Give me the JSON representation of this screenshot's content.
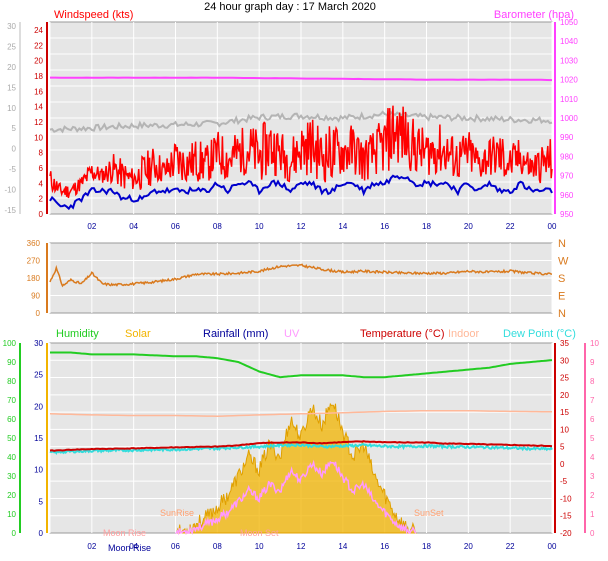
{
  "page": {
    "title": "24 hour graph day : 17 March 2020"
  },
  "colors": {
    "background": "#ffffff",
    "panel": "#e6e6e6",
    "grid": "#ffffff",
    "wind": "#ff0000",
    "wind_avg": "#0000cc",
    "gust_trace": "#b4b4b4",
    "barometer": "#ff40ff",
    "direction": "#d97a1e",
    "humidity": "#22cc22",
    "solar": "#f2b400",
    "rainfall": "#000099",
    "uv": "#ff99ff",
    "temperature": "#cc0000",
    "indoor": "#ffb899",
    "dewpoint": "#33dddd"
  },
  "chart_data": [
    {
      "type": "line",
      "title": "24 hour graph day : 17 March 2020",
      "left_axis_label": "Windspeed (kts)",
      "right_axis_label": "Barometer (hpa)",
      "x_ticks": [
        "02",
        "04",
        "06",
        "08",
        "10",
        "12",
        "14",
        "16",
        "18",
        "20",
        "22",
        "00"
      ],
      "outer_ticks": [
        "30",
        "25",
        "20",
        "15",
        "10",
        "5",
        "0",
        "-5",
        "-10",
        "-15"
      ],
      "left_ticks": [
        "24",
        "22",
        "20",
        "18",
        "16",
        "14",
        "12",
        "10",
        "8",
        "6",
        "4",
        "2",
        "0"
      ],
      "right_ticks": [
        "1050",
        "1040",
        "1030",
        "1020",
        "1010",
        "1000",
        "990",
        "980",
        "970",
        "960",
        "950"
      ],
      "xlim": [
        0,
        24
      ],
      "ylim_windspeed": [
        0,
        25
      ],
      "ylim_barometer": [
        950,
        1050
      ],
      "grid": true,
      "series": [
        {
          "name": "Windspeed (kts)",
          "role": "gust",
          "x": [
            0,
            0.5,
            1,
            1.5,
            2,
            2.5,
            3,
            3.5,
            4,
            4.5,
            5,
            5.5,
            6,
            6.5,
            7,
            7.5,
            8,
            8.5,
            9,
            9.5,
            10,
            10.5,
            11,
            11.5,
            12,
            12.5,
            13,
            13.5,
            14,
            14.5,
            15,
            15.5,
            16,
            16.5,
            17,
            17.5,
            18,
            18.5,
            19,
            19.5,
            20,
            20.5,
            21,
            21.5,
            22,
            22.5,
            23,
            23.5,
            24
          ],
          "values": [
            5,
            3,
            3,
            4,
            6,
            5,
            7,
            6,
            5,
            7,
            8,
            6,
            9,
            8,
            9,
            8,
            10,
            9,
            10,
            11,
            10,
            12,
            10,
            9,
            11,
            12,
            10,
            11,
            10,
            11,
            9,
            10,
            12,
            15,
            13,
            11,
            10,
            11,
            10,
            9,
            10,
            8,
            9,
            10,
            8,
            9,
            7,
            8,
            9
          ]
        },
        {
          "name": "Average wind",
          "role": "average",
          "x": [
            0,
            0.5,
            1,
            1.5,
            2,
            2.5,
            3,
            3.5,
            4,
            4.5,
            5,
            5.5,
            6,
            6.5,
            7,
            7.5,
            8,
            8.5,
            9,
            9.5,
            10,
            10.5,
            11,
            11.5,
            12,
            12.5,
            13,
            13.5,
            14,
            14.5,
            15,
            15.5,
            16,
            16.5,
            17,
            17.5,
            18,
            18.5,
            19,
            19.5,
            20,
            20.5,
            21,
            21.5,
            22,
            22.5,
            23,
            23.5,
            24
          ],
          "values": [
            2,
            1,
            1,
            2,
            3,
            3,
            3,
            2,
            2,
            2,
            3,
            3,
            3,
            3,
            3,
            3,
            4,
            3,
            4,
            4,
            3,
            4,
            4,
            3,
            4,
            4,
            3,
            3,
            4,
            4,
            3,
            4,
            4,
            5,
            5,
            4,
            4,
            4,
            4,
            3,
            4,
            3,
            4,
            3,
            3,
            4,
            3,
            3,
            3
          ]
        },
        {
          "name": "Gust trace",
          "role": "grey",
          "x": [
            0,
            2,
            4,
            6,
            8,
            10,
            12,
            14,
            16,
            18,
            20,
            22,
            24
          ],
          "values": [
            11,
            11.2,
            11.5,
            11.6,
            11.8,
            12.6,
            12.8,
            12.5,
            13,
            12.6,
            12.5,
            12.3,
            12.2
          ]
        },
        {
          "name": "Barometer (hpa)",
          "role": "barometer",
          "x": [
            0,
            2,
            4,
            6,
            8,
            10,
            12,
            14,
            16,
            18,
            20,
            22,
            24
          ],
          "values": [
            1021,
            1021,
            1021,
            1021,
            1021,
            1020.8,
            1020.6,
            1020.4,
            1020.2,
            1020,
            1020,
            1020,
            1019.8
          ]
        }
      ]
    },
    {
      "type": "line",
      "series_name": "Wind direction",
      "left_ticks": [
        "360",
        "270",
        "180",
        "90",
        "0"
      ],
      "right_labels": [
        "N",
        "W",
        "S",
        "E",
        "N"
      ],
      "ylim": [
        0,
        360
      ],
      "xlim": [
        0,
        24
      ],
      "x": [
        0,
        0.3,
        0.6,
        1,
        1.5,
        2,
        2.5,
        3,
        4,
        5,
        6,
        7,
        8,
        9,
        10,
        11,
        12,
        13,
        14,
        15,
        16,
        17,
        18,
        19,
        20,
        21,
        22,
        23,
        24
      ],
      "values": [
        160,
        230,
        140,
        170,
        150,
        205,
        150,
        145,
        150,
        160,
        175,
        200,
        200,
        205,
        215,
        240,
        245,
        225,
        210,
        215,
        210,
        205,
        205,
        205,
        215,
        210,
        215,
        205,
        200
      ]
    },
    {
      "type": "line",
      "legend": [
        "Humidity",
        "Solar",
        "Rainfall (mm)",
        "UV",
        "Temperature (°C)",
        "Indoor",
        "Dew Point (°C)"
      ],
      "x_ticks": [
        "02",
        "04",
        "06",
        "08",
        "10",
        "12",
        "14",
        "16",
        "18",
        "20",
        "22",
        "00"
      ],
      "outer_left_ticks": [
        "100",
        "90",
        "80",
        "70",
        "60",
        "50",
        "40",
        "30",
        "20",
        "10",
        "0"
      ],
      "left_ticks": [
        "30",
        "25",
        "20",
        "15",
        "10",
        "5",
        "0"
      ],
      "right_ticks": [
        "35",
        "30",
        "25",
        "20",
        "15",
        "10",
        "5",
        "0",
        "-5",
        "-10",
        "-15",
        "-20"
      ],
      "outer_right_ticks": [
        "10",
        "9",
        "8",
        "7",
        "6",
        "5",
        "4",
        "3",
        "2",
        "1",
        "0"
      ],
      "annotations": [
        "Moon Rise",
        "Moon Rise",
        "SunRise",
        "SunSet",
        "Moon Set"
      ],
      "xlim": [
        0,
        24
      ],
      "ylim_temperature": [
        -20,
        35
      ],
      "series": [
        {
          "name": "Humidity",
          "x": [
            0,
            1,
            2,
            4,
            6,
            7,
            8,
            9,
            10,
            11,
            12,
            13,
            14,
            15,
            16,
            17,
            18,
            19,
            20,
            21,
            22,
            23,
            24
          ],
          "values": [
            95,
            95,
            94,
            94,
            93,
            93,
            92,
            90,
            85,
            82,
            83,
            83,
            83,
            82,
            82,
            83,
            84,
            85,
            86,
            87,
            89,
            90,
            91
          ]
        },
        {
          "name": "Temperature (°C)",
          "x": [
            0,
            1,
            2,
            4,
            6,
            8,
            9,
            10,
            11,
            12,
            13,
            14,
            15,
            16,
            17,
            18,
            19,
            20,
            21,
            22,
            23,
            24
          ],
          "values": [
            3.8,
            4.1,
            4.3,
            4.5,
            4.8,
            5.0,
            5.4,
            6.0,
            6.2,
            6.2,
            6.0,
            6.3,
            6.5,
            6.3,
            6.2,
            6.2,
            5.9,
            5.8,
            5.6,
            5.5,
            5.3,
            5.2
          ]
        },
        {
          "name": "Dew Point (°C)",
          "x": [
            0,
            1,
            2,
            4,
            6,
            8,
            9,
            10,
            11,
            12,
            13,
            14,
            15,
            16,
            17,
            18,
            19,
            20,
            21,
            22,
            23,
            24
          ],
          "values": [
            3.3,
            3.6,
            3.8,
            4.0,
            4.2,
            4.5,
            4.8,
            5.0,
            5.4,
            5.5,
            5.0,
            5.2,
            5.4,
            5.1,
            5.0,
            5.2,
            5.0,
            4.9,
            4.8,
            4.6,
            4.4,
            4.3
          ]
        },
        {
          "name": "Indoor",
          "x": [
            0,
            2,
            4,
            6,
            8,
            10,
            12,
            14,
            16,
            18,
            20,
            22,
            24
          ],
          "values": [
            14.5,
            14.2,
            14,
            14,
            13.8,
            14.2,
            14.5,
            14.8,
            15.2,
            15.4,
            15.4,
            15.2,
            15.1
          ]
        },
        {
          "name": "Solar",
          "x": [
            6,
            6.5,
            7,
            7.5,
            8,
            8.5,
            9,
            9.5,
            10,
            10.5,
            11,
            11.5,
            12,
            12.5,
            13,
            13.5,
            14,
            14.5,
            15,
            15.5,
            16,
            16.5,
            17,
            17.5
          ],
          "values": [
            0,
            0.5,
            1.5,
            2.5,
            4,
            6,
            9,
            12,
            10,
            14,
            12,
            18,
            15,
            20,
            17,
            21,
            16,
            12,
            14,
            9,
            6,
            3,
            1,
            0
          ]
        }
      ]
    }
  ]
}
